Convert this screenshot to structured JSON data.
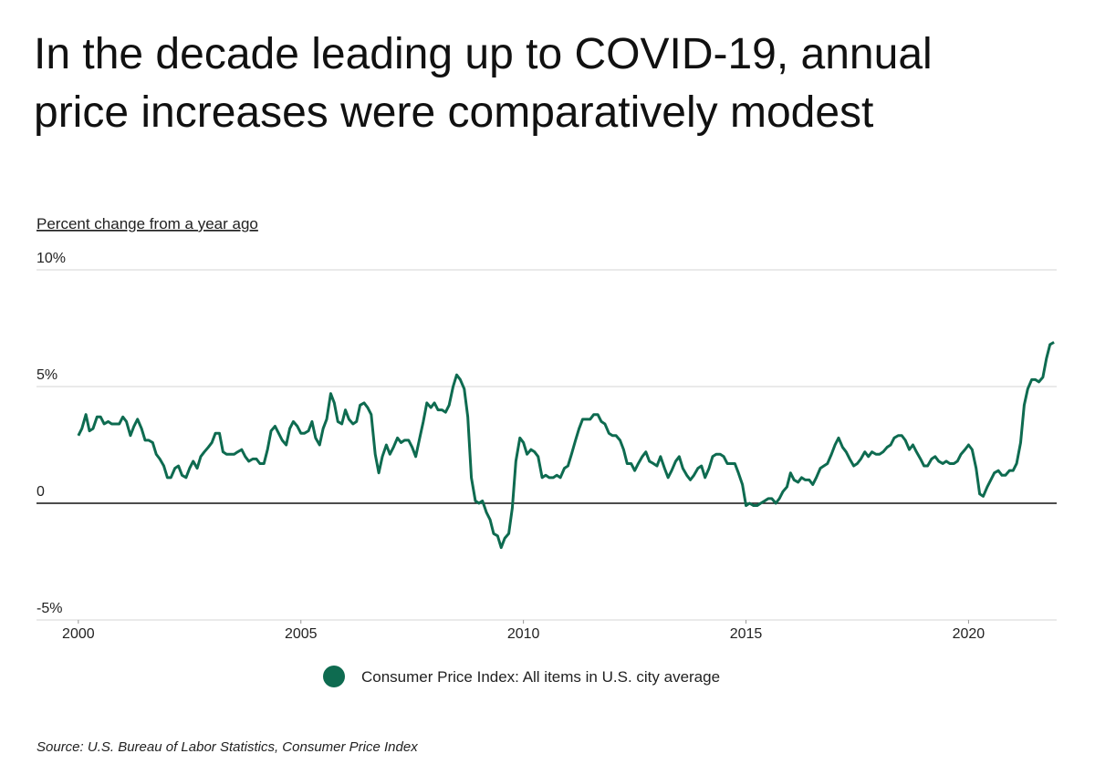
{
  "chart_data": {
    "type": "line",
    "title": "In the decade leading up to COVID-19, annual price increases were comparatively modest",
    "y_axis_label": "Percent change from a year ago",
    "source": "Source:  U.S. Bureau of Labor Statistics, Consumer Price Index",
    "xlim": [
      1999.06,
      2021.98
    ],
    "xticks": [
      2000,
      2005,
      2010,
      2015,
      2020
    ],
    "ylim": [
      -5,
      10
    ],
    "yticks": [
      {
        "value": -5,
        "label": "-5%"
      },
      0,
      {
        "value": 5,
        "label": "5%"
      },
      {
        "value": 10,
        "label": "10%"
      }
    ],
    "grid": true,
    "x": [
      2000.0,
      2000.08,
      2000.17,
      2000.25,
      2000.33,
      2000.42,
      2000.5,
      2000.58,
      2000.67,
      2000.75,
      2000.83,
      2000.92,
      2001.0,
      2001.08,
      2001.17,
      2001.25,
      2001.33,
      2001.42,
      2001.5,
      2001.58,
      2001.67,
      2001.75,
      2001.83,
      2001.92,
      2002.0,
      2002.08,
      2002.17,
      2002.25,
      2002.33,
      2002.42,
      2002.5,
      2002.58,
      2002.67,
      2002.75,
      2002.83,
      2002.92,
      2003.0,
      2003.08,
      2003.17,
      2003.25,
      2003.33,
      2003.42,
      2003.5,
      2003.58,
      2003.67,
      2003.75,
      2003.83,
      2003.92,
      2004.0,
      2004.08,
      2004.17,
      2004.25,
      2004.33,
      2004.42,
      2004.5,
      2004.58,
      2004.67,
      2004.75,
      2004.83,
      2004.92,
      2005.0,
      2005.08,
      2005.17,
      2005.25,
      2005.33,
      2005.42,
      2005.5,
      2005.58,
      2005.67,
      2005.75,
      2005.83,
      2005.92,
      2006.0,
      2006.08,
      2006.17,
      2006.25,
      2006.33,
      2006.42,
      2006.5,
      2006.58,
      2006.67,
      2006.75,
      2006.83,
      2006.92,
      2007.0,
      2007.08,
      2007.17,
      2007.25,
      2007.33,
      2007.42,
      2007.5,
      2007.58,
      2007.67,
      2007.75,
      2007.83,
      2007.92,
      2008.0,
      2008.08,
      2008.17,
      2008.25,
      2008.33,
      2008.42,
      2008.5,
      2008.58,
      2008.67,
      2008.75,
      2008.83,
      2008.92,
      2009.0,
      2009.08,
      2009.17,
      2009.25,
      2009.33,
      2009.42,
      2009.5,
      2009.58,
      2009.67,
      2009.75,
      2009.83,
      2009.92,
      2010.0,
      2010.08,
      2010.17,
      2010.25,
      2010.33,
      2010.42,
      2010.5,
      2010.58,
      2010.67,
      2010.75,
      2010.83,
      2010.92,
      2011.0,
      2011.08,
      2011.17,
      2011.25,
      2011.33,
      2011.42,
      2011.5,
      2011.58,
      2011.67,
      2011.75,
      2011.83,
      2011.92,
      2012.0,
      2012.08,
      2012.17,
      2012.25,
      2012.33,
      2012.42,
      2012.5,
      2012.58,
      2012.67,
      2012.75,
      2012.83,
      2012.92,
      2013.0,
      2013.08,
      2013.17,
      2013.25,
      2013.33,
      2013.42,
      2013.5,
      2013.58,
      2013.67,
      2013.75,
      2013.83,
      2013.92,
      2014.0,
      2014.08,
      2014.17,
      2014.25,
      2014.33,
      2014.42,
      2014.5,
      2014.58,
      2014.67,
      2014.75,
      2014.83,
      2014.92,
      2015.0,
      2015.08,
      2015.17,
      2015.25,
      2015.33,
      2015.42,
      2015.5,
      2015.58,
      2015.67,
      2015.75,
      2015.83,
      2015.92,
      2016.0,
      2016.08,
      2016.17,
      2016.25,
      2016.33,
      2016.42,
      2016.5,
      2016.58,
      2016.67,
      2016.75,
      2016.83,
      2016.92,
      2017.0,
      2017.08,
      2017.17,
      2017.25,
      2017.33,
      2017.42,
      2017.5,
      2017.58,
      2017.67,
      2017.75,
      2017.83,
      2017.92,
      2018.0,
      2018.08,
      2018.17,
      2018.25,
      2018.33,
      2018.42,
      2018.5,
      2018.58,
      2018.67,
      2018.75,
      2018.83,
      2018.92,
      2019.0,
      2019.08,
      2019.17,
      2019.25,
      2019.33,
      2019.42,
      2019.5,
      2019.58,
      2019.67,
      2019.75,
      2019.83,
      2019.92,
      2020.0,
      2020.08,
      2020.17,
      2020.25,
      2020.33,
      2020.42,
      2020.5,
      2020.58,
      2020.67,
      2020.75,
      2020.83,
      2020.92,
      2021.0,
      2021.08,
      2021.17,
      2021.25,
      2021.33,
      2021.42,
      2021.5,
      2021.58,
      2021.67,
      2021.75,
      2021.83,
      2021.92
    ],
    "series": [
      {
        "name": "Consumer Price Index: All items in U.S. city average",
        "color": "#0e6b50",
        "values": [
          2.9,
          3.2,
          3.8,
          3.1,
          3.2,
          3.7,
          3.7,
          3.4,
          3.5,
          3.4,
          3.4,
          3.4,
          3.7,
          3.5,
          2.9,
          3.3,
          3.6,
          3.2,
          2.7,
          2.7,
          2.6,
          2.1,
          1.9,
          1.6,
          1.1,
          1.1,
          1.5,
          1.6,
          1.2,
          1.1,
          1.5,
          1.8,
          1.5,
          2.0,
          2.2,
          2.4,
          2.6,
          3.0,
          3.0,
          2.2,
          2.1,
          2.1,
          2.1,
          2.2,
          2.3,
          2.0,
          1.8,
          1.9,
          1.9,
          1.7,
          1.7,
          2.3,
          3.1,
          3.3,
          3.0,
          2.7,
          2.5,
          3.2,
          3.5,
          3.3,
          3.0,
          3.0,
          3.1,
          3.5,
          2.8,
          2.5,
          3.2,
          3.6,
          4.7,
          4.3,
          3.5,
          3.4,
          4.0,
          3.6,
          3.4,
          3.5,
          4.2,
          4.3,
          4.1,
          3.8,
          2.1,
          1.3,
          2.0,
          2.5,
          2.1,
          2.4,
          2.8,
          2.6,
          2.7,
          2.7,
          2.4,
          2.0,
          2.8,
          3.5,
          4.3,
          4.1,
          4.3,
          4.0,
          4.0,
          3.9,
          4.2,
          5.0,
          5.5,
          5.3,
          4.9,
          3.7,
          1.1,
          0.1,
          0.0,
          0.1,
          -0.4,
          -0.7,
          -1.3,
          -1.4,
          -1.9,
          -1.5,
          -1.3,
          -0.2,
          1.8,
          2.8,
          2.6,
          2.1,
          2.3,
          2.2,
          2.0,
          1.1,
          1.2,
          1.1,
          1.1,
          1.2,
          1.1,
          1.5,
          1.6,
          2.1,
          2.7,
          3.2,
          3.6,
          3.6,
          3.6,
          3.8,
          3.8,
          3.5,
          3.4,
          3.0,
          2.9,
          2.9,
          2.7,
          2.3,
          1.7,
          1.7,
          1.4,
          1.7,
          2.0,
          2.2,
          1.8,
          1.7,
          1.6,
          2.0,
          1.5,
          1.1,
          1.4,
          1.8,
          2.0,
          1.5,
          1.2,
          1.0,
          1.2,
          1.5,
          1.6,
          1.1,
          1.5,
          2.0,
          2.1,
          2.1,
          2.0,
          1.7,
          1.7,
          1.7,
          1.3,
          0.8,
          -0.1,
          0.0,
          -0.1,
          -0.1,
          0.0,
          0.1,
          0.2,
          0.2,
          0.0,
          0.2,
          0.5,
          0.7,
          1.3,
          1.0,
          0.9,
          1.1,
          1.0,
          1.0,
          0.8,
          1.1,
          1.5,
          1.6,
          1.7,
          2.1,
          2.5,
          2.8,
          2.4,
          2.2,
          1.9,
          1.6,
          1.7,
          1.9,
          2.2,
          2.0,
          2.2,
          2.1,
          2.1,
          2.2,
          2.4,
          2.5,
          2.8,
          2.9,
          2.9,
          2.7,
          2.3,
          2.5,
          2.2,
          1.9,
          1.6,
          1.6,
          1.9,
          2.0,
          1.8,
          1.7,
          1.8,
          1.7,
          1.7,
          1.8,
          2.1,
          2.3,
          2.5,
          2.3,
          1.5,
          0.4,
          0.3,
          0.7,
          1.0,
          1.3,
          1.4,
          1.2,
          1.2,
          1.4,
          1.4,
          1.7,
          2.6,
          4.2,
          4.9,
          5.3,
          5.3,
          5.2,
          5.4,
          6.2,
          6.8,
          6.9
        ]
      }
    ]
  }
}
